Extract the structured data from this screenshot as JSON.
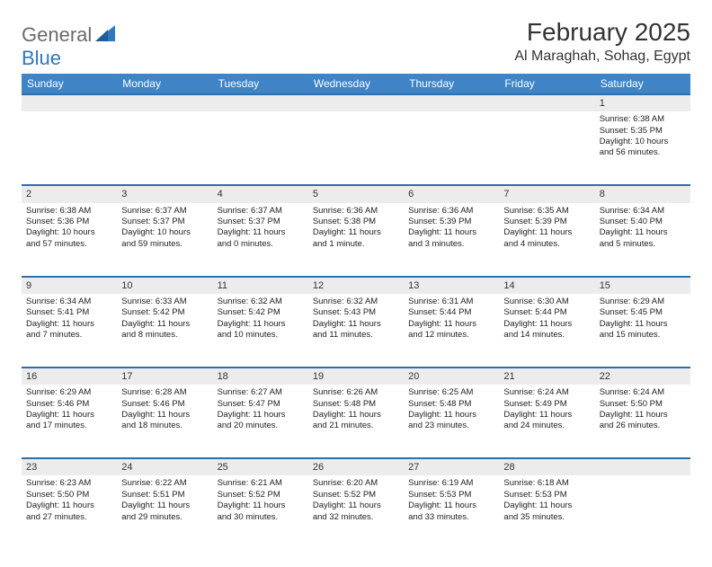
{
  "brand": {
    "part1": "General",
    "part2": "Blue"
  },
  "title": "February 2025",
  "location": "Al Maraghah, Sohag, Egypt",
  "colors": {
    "header_bg": "#3e84c6",
    "header_border": "#2f6fa8",
    "daynum_bg": "#ececec",
    "brand_gray": "#6b6b6b",
    "brand_blue": "#2f78bd",
    "text": "#222222",
    "background": "#ffffff"
  },
  "fonts": {
    "title_size": 28,
    "location_size": 16,
    "dayhead_size": 12,
    "cell_size": 9.5
  },
  "day_headers": [
    "Sunday",
    "Monday",
    "Tuesday",
    "Wednesday",
    "Thursday",
    "Friday",
    "Saturday"
  ],
  "weeks": [
    {
      "nums": [
        "",
        "",
        "",
        "",
        "",
        "",
        "1"
      ],
      "cells": [
        null,
        null,
        null,
        null,
        null,
        null,
        {
          "sunrise": "Sunrise: 6:38 AM",
          "sunset": "Sunset: 5:35 PM",
          "daylight1": "Daylight: 10 hours",
          "daylight2": "and 56 minutes."
        }
      ]
    },
    {
      "nums": [
        "2",
        "3",
        "4",
        "5",
        "6",
        "7",
        "8"
      ],
      "cells": [
        {
          "sunrise": "Sunrise: 6:38 AM",
          "sunset": "Sunset: 5:36 PM",
          "daylight1": "Daylight: 10 hours",
          "daylight2": "and 57 minutes."
        },
        {
          "sunrise": "Sunrise: 6:37 AM",
          "sunset": "Sunset: 5:37 PM",
          "daylight1": "Daylight: 10 hours",
          "daylight2": "and 59 minutes."
        },
        {
          "sunrise": "Sunrise: 6:37 AM",
          "sunset": "Sunset: 5:37 PM",
          "daylight1": "Daylight: 11 hours",
          "daylight2": "and 0 minutes."
        },
        {
          "sunrise": "Sunrise: 6:36 AM",
          "sunset": "Sunset: 5:38 PM",
          "daylight1": "Daylight: 11 hours",
          "daylight2": "and 1 minute."
        },
        {
          "sunrise": "Sunrise: 6:36 AM",
          "sunset": "Sunset: 5:39 PM",
          "daylight1": "Daylight: 11 hours",
          "daylight2": "and 3 minutes."
        },
        {
          "sunrise": "Sunrise: 6:35 AM",
          "sunset": "Sunset: 5:39 PM",
          "daylight1": "Daylight: 11 hours",
          "daylight2": "and 4 minutes."
        },
        {
          "sunrise": "Sunrise: 6:34 AM",
          "sunset": "Sunset: 5:40 PM",
          "daylight1": "Daylight: 11 hours",
          "daylight2": "and 5 minutes."
        }
      ]
    },
    {
      "nums": [
        "9",
        "10",
        "11",
        "12",
        "13",
        "14",
        "15"
      ],
      "cells": [
        {
          "sunrise": "Sunrise: 6:34 AM",
          "sunset": "Sunset: 5:41 PM",
          "daylight1": "Daylight: 11 hours",
          "daylight2": "and 7 minutes."
        },
        {
          "sunrise": "Sunrise: 6:33 AM",
          "sunset": "Sunset: 5:42 PM",
          "daylight1": "Daylight: 11 hours",
          "daylight2": "and 8 minutes."
        },
        {
          "sunrise": "Sunrise: 6:32 AM",
          "sunset": "Sunset: 5:42 PM",
          "daylight1": "Daylight: 11 hours",
          "daylight2": "and 10 minutes."
        },
        {
          "sunrise": "Sunrise: 6:32 AM",
          "sunset": "Sunset: 5:43 PM",
          "daylight1": "Daylight: 11 hours",
          "daylight2": "and 11 minutes."
        },
        {
          "sunrise": "Sunrise: 6:31 AM",
          "sunset": "Sunset: 5:44 PM",
          "daylight1": "Daylight: 11 hours",
          "daylight2": "and 12 minutes."
        },
        {
          "sunrise": "Sunrise: 6:30 AM",
          "sunset": "Sunset: 5:44 PM",
          "daylight1": "Daylight: 11 hours",
          "daylight2": "and 14 minutes."
        },
        {
          "sunrise": "Sunrise: 6:29 AM",
          "sunset": "Sunset: 5:45 PM",
          "daylight1": "Daylight: 11 hours",
          "daylight2": "and 15 minutes."
        }
      ]
    },
    {
      "nums": [
        "16",
        "17",
        "18",
        "19",
        "20",
        "21",
        "22"
      ],
      "cells": [
        {
          "sunrise": "Sunrise: 6:29 AM",
          "sunset": "Sunset: 5:46 PM",
          "daylight1": "Daylight: 11 hours",
          "daylight2": "and 17 minutes."
        },
        {
          "sunrise": "Sunrise: 6:28 AM",
          "sunset": "Sunset: 5:46 PM",
          "daylight1": "Daylight: 11 hours",
          "daylight2": "and 18 minutes."
        },
        {
          "sunrise": "Sunrise: 6:27 AM",
          "sunset": "Sunset: 5:47 PM",
          "daylight1": "Daylight: 11 hours",
          "daylight2": "and 20 minutes."
        },
        {
          "sunrise": "Sunrise: 6:26 AM",
          "sunset": "Sunset: 5:48 PM",
          "daylight1": "Daylight: 11 hours",
          "daylight2": "and 21 minutes."
        },
        {
          "sunrise": "Sunrise: 6:25 AM",
          "sunset": "Sunset: 5:48 PM",
          "daylight1": "Daylight: 11 hours",
          "daylight2": "and 23 minutes."
        },
        {
          "sunrise": "Sunrise: 6:24 AM",
          "sunset": "Sunset: 5:49 PM",
          "daylight1": "Daylight: 11 hours",
          "daylight2": "and 24 minutes."
        },
        {
          "sunrise": "Sunrise: 6:24 AM",
          "sunset": "Sunset: 5:50 PM",
          "daylight1": "Daylight: 11 hours",
          "daylight2": "and 26 minutes."
        }
      ]
    },
    {
      "nums": [
        "23",
        "24",
        "25",
        "26",
        "27",
        "28",
        ""
      ],
      "cells": [
        {
          "sunrise": "Sunrise: 6:23 AM",
          "sunset": "Sunset: 5:50 PM",
          "daylight1": "Daylight: 11 hours",
          "daylight2": "and 27 minutes."
        },
        {
          "sunrise": "Sunrise: 6:22 AM",
          "sunset": "Sunset: 5:51 PM",
          "daylight1": "Daylight: 11 hours",
          "daylight2": "and 29 minutes."
        },
        {
          "sunrise": "Sunrise: 6:21 AM",
          "sunset": "Sunset: 5:52 PM",
          "daylight1": "Daylight: 11 hours",
          "daylight2": "and 30 minutes."
        },
        {
          "sunrise": "Sunrise: 6:20 AM",
          "sunset": "Sunset: 5:52 PM",
          "daylight1": "Daylight: 11 hours",
          "daylight2": "and 32 minutes."
        },
        {
          "sunrise": "Sunrise: 6:19 AM",
          "sunset": "Sunset: 5:53 PM",
          "daylight1": "Daylight: 11 hours",
          "daylight2": "and 33 minutes."
        },
        {
          "sunrise": "Sunrise: 6:18 AM",
          "sunset": "Sunset: 5:53 PM",
          "daylight1": "Daylight: 11 hours",
          "daylight2": "and 35 minutes."
        },
        null
      ]
    }
  ]
}
